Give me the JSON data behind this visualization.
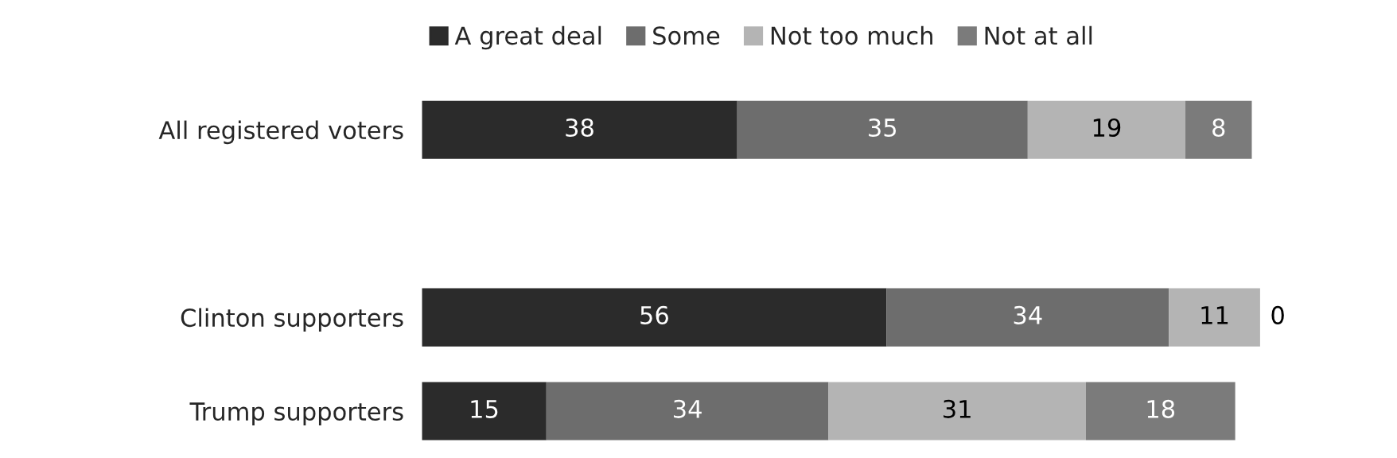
{
  "chart_data": {
    "type": "bar",
    "orientation": "horizontal",
    "stacked": true,
    "data_labels": true,
    "legend": "top",
    "grid": false,
    "categories": [
      "All registered voters",
      null,
      "Clinton supporters",
      "Trump supporters"
    ],
    "series": [
      {
        "name": "A great deal",
        "color": "#2b2b2b",
        "values": [
          38,
          null,
          56,
          15
        ]
      },
      {
        "name": "Some",
        "color": "#6d6d6d",
        "values": [
          35,
          null,
          34,
          34
        ]
      },
      {
        "name": "Not too much",
        "color": "#b4b4b4",
        "values": [
          19,
          null,
          11,
          31
        ]
      },
      {
        "name": "Not at all",
        "color": "#7b7b7b",
        "values": [
          8,
          null,
          0,
          18
        ]
      }
    ]
  }
}
